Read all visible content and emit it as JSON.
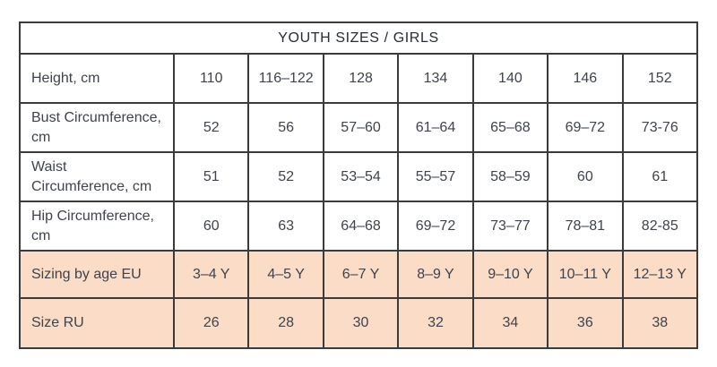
{
  "colors": {
    "title_bg": "#d9d9d9",
    "highlight_bg": "#fbdcc6",
    "border": "#3b3b3b",
    "text": "#3e434c"
  },
  "table": {
    "title": "YOUTH SIZES / GIRLS",
    "rows": [
      {
        "label": "Height, cm",
        "values": [
          "110",
          "116–122",
          "128",
          "134",
          "140",
          "146",
          "152"
        ]
      },
      {
        "label": "Bust Circumference, cm",
        "values": [
          "52",
          "56",
          "57–60",
          "61–64",
          "65–68",
          "69–72",
          "73-76"
        ]
      },
      {
        "label": "Waist Circumference, cm",
        "values": [
          "51",
          "52",
          "53–54",
          "55–57",
          "58–59",
          "60",
          "61"
        ]
      },
      {
        "label": "Hip Circumference, cm",
        "values": [
          "60",
          "63",
          "64–68",
          "69–72",
          "73–77",
          "78–81",
          "82-85"
        ]
      },
      {
        "label": "Sizing by age EU",
        "values": [
          "3–4 Y",
          "4–5 Y",
          "6–7 Y",
          "8–9 Y",
          "9–10 Y",
          "10–11 Y",
          "12–13 Y"
        ]
      },
      {
        "label": "Size RU",
        "values": [
          "26",
          "28",
          "30",
          "32",
          "34",
          "36",
          "38"
        ]
      }
    ]
  }
}
